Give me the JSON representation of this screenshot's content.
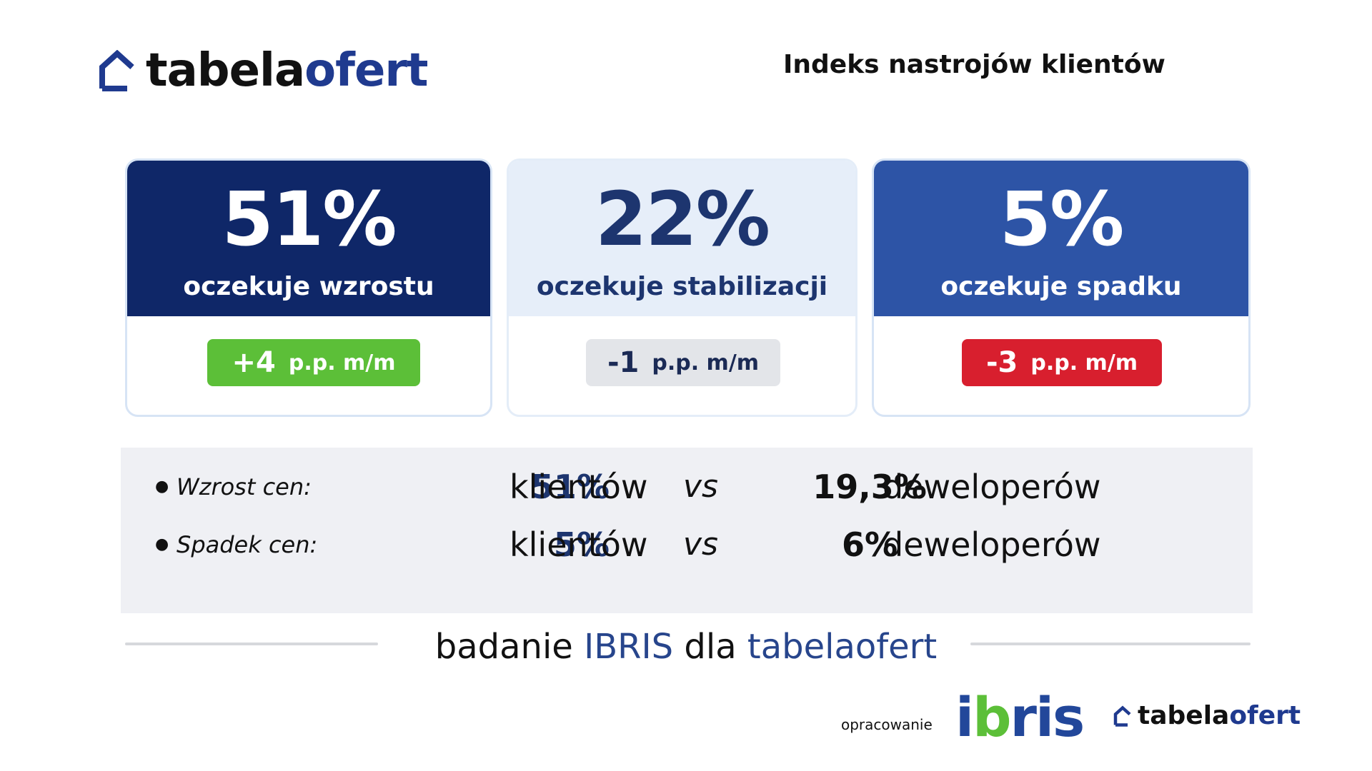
{
  "brand": {
    "part1": "tabela",
    "part2": "ofert",
    "accent": "#1f3a8f"
  },
  "header": {
    "title": "Indeks nastrojów klientów"
  },
  "cards": [
    {
      "percent": "51%",
      "label": "oczekuje wzrostu",
      "change": "+4",
      "unit": "p.p. m/m",
      "color": "#0f2768",
      "badge_color": "#5cbf38"
    },
    {
      "percent": "22%",
      "label": "oczekuje stabilizacji",
      "change": "-1",
      "unit": "p.p. m/m",
      "color": "#e6eef9",
      "badge_color": "#e3e5e9"
    },
    {
      "percent": "5%",
      "label": "oczekuje spadku",
      "change": "-3",
      "unit": "p.p. m/m",
      "color": "#2d54a6",
      "badge_color": "#d81f2e"
    }
  ],
  "comparison": [
    {
      "label": "Wzrost cen:",
      "clients_pct": "51%",
      "clients_word": "klientów",
      "vs": "vs",
      "dev_pct": "19,3%",
      "dev_word": "deweloperów"
    },
    {
      "label": "Spadek cen:",
      "clients_pct": "5%",
      "clients_word": "klientów",
      "vs": "vs",
      "dev_pct": "6%",
      "dev_word": "deweloperów"
    }
  ],
  "caption": {
    "part1": "badanie ",
    "part2": "IBRIS",
    "part3": " dla ",
    "part4": "tabelaofert"
  },
  "footer": {
    "label": "opracowanie",
    "ibris_1": "i",
    "ibris_2": "b",
    "ibris_3": "ris"
  }
}
